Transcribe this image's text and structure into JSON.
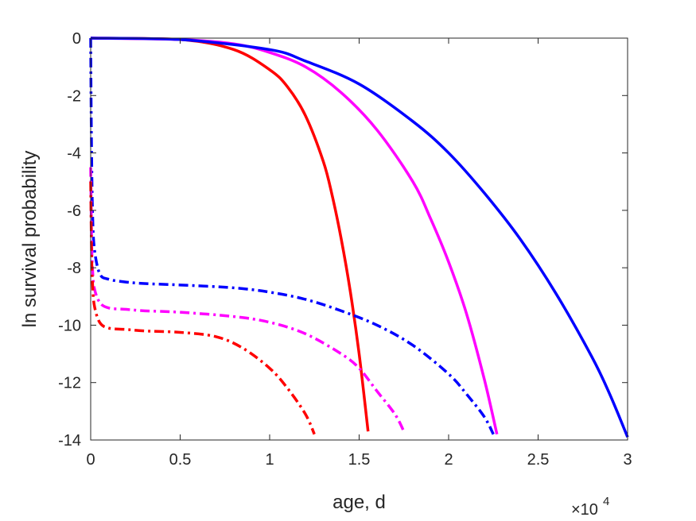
{
  "chart_data": {
    "type": "line",
    "title": "",
    "xlabel": "age, d",
    "ylabel": "ln survival probability",
    "x_exponent_label": {
      "base": "×10",
      "exponent": "4"
    },
    "xlim": [
      0,
      3
    ],
    "ylim": [
      -14,
      0
    ],
    "x_ticks": [
      {
        "value": 0,
        "label": "0"
      },
      {
        "value": 0.5,
        "label": "0.5"
      },
      {
        "value": 1,
        "label": "1"
      },
      {
        "value": 1.5,
        "label": "1.5"
      },
      {
        "value": 2,
        "label": "2"
      },
      {
        "value": 2.5,
        "label": "2.5"
      },
      {
        "value": 3,
        "label": "3"
      }
    ],
    "y_ticks": [
      {
        "value": 0,
        "label": "0"
      },
      {
        "value": -2,
        "label": "-2"
      },
      {
        "value": -4,
        "label": "-4"
      },
      {
        "value": -6,
        "label": "-6"
      },
      {
        "value": -8,
        "label": "-8"
      },
      {
        "value": -10,
        "label": "-10"
      },
      {
        "value": -12,
        "label": "-12"
      },
      {
        "value": -14,
        "label": "-14"
      }
    ],
    "grid": false,
    "legend": null,
    "series": [
      {
        "color": "#ff0000",
        "style": "solid",
        "x": [
          0,
          0.5,
          0.8,
          1.0,
          1.1,
          1.2,
          1.3,
          1.35,
          1.4,
          1.45,
          1.5,
          1.55
        ],
        "y": [
          0,
          -0.05,
          -0.4,
          -1.1,
          -1.7,
          -2.7,
          -4.3,
          -5.5,
          -7.0,
          -8.8,
          -11.0,
          -13.7
        ]
      },
      {
        "color": "#ff00ff",
        "style": "solid",
        "x": [
          0,
          0.5,
          0.8,
          1.0,
          1.2,
          1.4,
          1.6,
          1.8,
          1.9,
          2.0,
          2.1,
          2.2,
          2.27
        ],
        "y": [
          0,
          -0.05,
          -0.2,
          -0.5,
          -1.0,
          -1.9,
          -3.2,
          -5.0,
          -6.3,
          -7.8,
          -9.6,
          -11.9,
          -13.8
        ]
      },
      {
        "color": "#0000ff",
        "style": "solid",
        "x": [
          0,
          0.5,
          1.0,
          1.2,
          1.5,
          1.8,
          2.0,
          2.2,
          2.4,
          2.6,
          2.8,
          2.9,
          3.0
        ],
        "y": [
          0,
          -0.05,
          -0.4,
          -0.8,
          -1.6,
          -2.9,
          -4.0,
          -5.4,
          -7.0,
          -8.9,
          -11.1,
          -12.4,
          -13.9
        ]
      },
      {
        "color": "#0000ff",
        "style": "dashdot",
        "x": [
          0,
          0.002,
          0.005,
          0.01,
          0.02,
          0.05,
          0.1,
          0.2,
          0.3,
          0.5,
          0.8,
          1.0,
          1.2,
          1.4,
          1.6,
          1.8,
          2.0,
          2.1,
          2.2,
          2.25
        ],
        "y": [
          0,
          -2.0,
          -4.0,
          -6.0,
          -7.3,
          -8.2,
          -8.4,
          -8.5,
          -8.55,
          -8.6,
          -8.7,
          -8.85,
          -9.1,
          -9.5,
          -10.0,
          -10.7,
          -11.7,
          -12.4,
          -13.2,
          -13.8
        ]
      },
      {
        "color": "#ff00ff",
        "style": "dashdot",
        "x": [
          0,
          0.005,
          0.01,
          0.02,
          0.05,
          0.1,
          0.2,
          0.3,
          0.5,
          0.8,
          1.0,
          1.2,
          1.4,
          1.5,
          1.6,
          1.7,
          1.75
        ],
        "y": [
          -4.5,
          -7.0,
          -8.0,
          -8.7,
          -9.2,
          -9.4,
          -9.45,
          -9.5,
          -9.55,
          -9.7,
          -9.9,
          -10.3,
          -11.0,
          -11.5,
          -12.3,
          -13.1,
          -13.7
        ]
      },
      {
        "color": "#ff0000",
        "style": "dashdot",
        "x": [
          0,
          0.005,
          0.01,
          0.02,
          0.05,
          0.1,
          0.2,
          0.3,
          0.5,
          0.7,
          0.85,
          1.0,
          1.1,
          1.2,
          1.25
        ],
        "y": [
          -5.0,
          -7.5,
          -8.5,
          -9.3,
          -9.9,
          -10.1,
          -10.15,
          -10.2,
          -10.25,
          -10.4,
          -10.8,
          -11.5,
          -12.2,
          -13.1,
          -13.8
        ]
      }
    ]
  }
}
